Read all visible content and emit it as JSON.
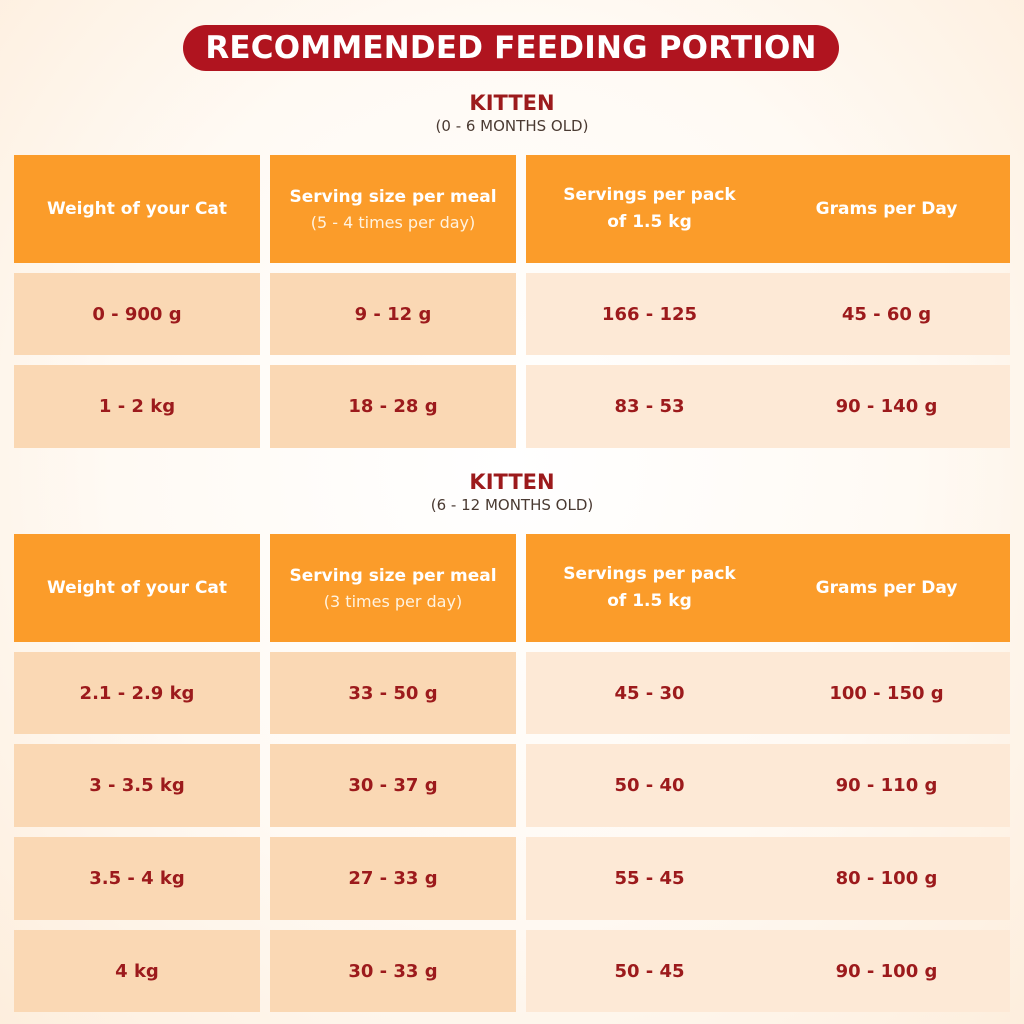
{
  "banner": "RECOMMENDED FEEDING PORTION",
  "sections": [
    {
      "title": "KITTEN",
      "subtitle": "(0 - 6 MONTHS OLD)",
      "headers": [
        {
          "main": "Weight of your Cat",
          "sub": ""
        },
        {
          "main": "Serving size per meal",
          "sub": "(5 - 4 times per day)"
        },
        {
          "main": "Servings per pack of 1.5 kg",
          "sub": ""
        },
        {
          "main": "Grams per Day",
          "sub": ""
        }
      ],
      "rows": [
        [
          "0 - 900 g",
          "9 - 12 g",
          "166 - 125",
          "45 - 60 g"
        ],
        [
          "1 - 2 kg",
          "18 - 28 g",
          "83 - 53",
          "90 - 140 g"
        ]
      ]
    },
    {
      "title": "KITTEN",
      "subtitle": "(6 - 12 MONTHS OLD)",
      "headers": [
        {
          "main": "Weight of your Cat",
          "sub": ""
        },
        {
          "main": "Serving size per meal",
          "sub": "(3 times per day)"
        },
        {
          "main": "Servings per pack of 1.5 kg",
          "sub": ""
        },
        {
          "main": "Grams per Day",
          "sub": ""
        }
      ],
      "rows": [
        [
          "2.1 - 2.9 kg",
          "33 - 50 g",
          "45 - 30",
          "100 - 150 g"
        ],
        [
          "3 - 3.5 kg",
          "30 - 37 g",
          "50 - 40",
          "90 - 110 g"
        ],
        [
          "3.5 - 4 kg",
          "27 - 33 g",
          "55 - 45",
          "80 - 100 g"
        ],
        [
          "4 kg",
          "30 - 33 g",
          "50 - 45",
          "90 - 100 g"
        ]
      ]
    }
  ]
}
